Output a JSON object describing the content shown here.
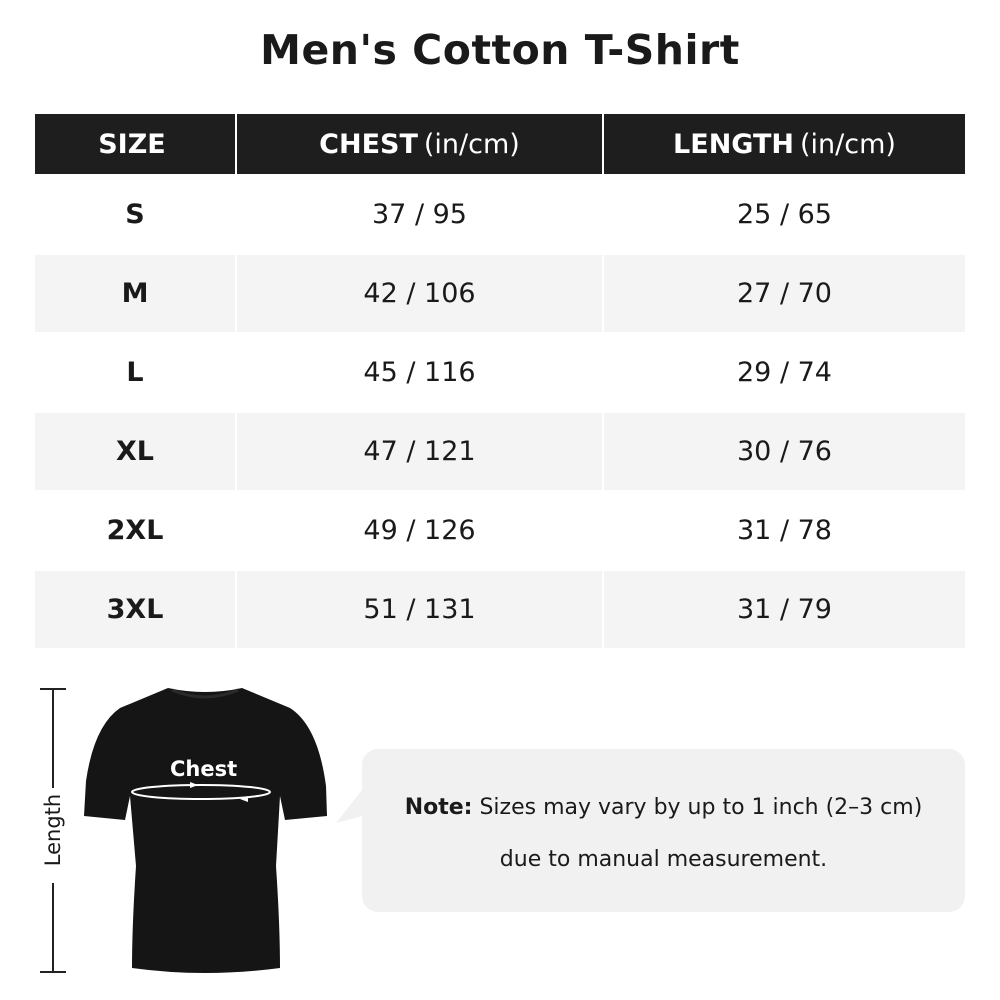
{
  "title": "Men's Cotton T-Shirt",
  "table": {
    "headers": [
      {
        "bold": "SIZE",
        "unit": ""
      },
      {
        "bold": "CHEST",
        "unit": "(in/cm)"
      },
      {
        "bold": "LENGTH",
        "unit": "(in/cm)"
      }
    ],
    "rows": [
      {
        "size": "S",
        "chest": "37 / 95",
        "length": "25 / 65"
      },
      {
        "size": "M",
        "chest": "42 / 106",
        "length": "27 / 70"
      },
      {
        "size": "L",
        "chest": "45 / 116",
        "length": "29 / 74"
      },
      {
        "size": "XL",
        "chest": "47 / 121",
        "length": "30 / 76"
      },
      {
        "size": "2XL",
        "chest": "49 / 126",
        "length": "31 / 78"
      },
      {
        "size": "3XL",
        "chest": "51 / 131",
        "length": "31 / 79"
      }
    ]
  },
  "diagram": {
    "chest_label": "Chest",
    "length_label": "Length"
  },
  "note": {
    "prefix": "Note:",
    "line1": "Sizes may vary by up to 1 inch (2–3 cm)",
    "line2": "due to manual measurement."
  },
  "colors": {
    "header_bg": "#1e1e1e",
    "alt_row": "#f4f4f4",
    "note_bg": "#f1f1f1"
  }
}
